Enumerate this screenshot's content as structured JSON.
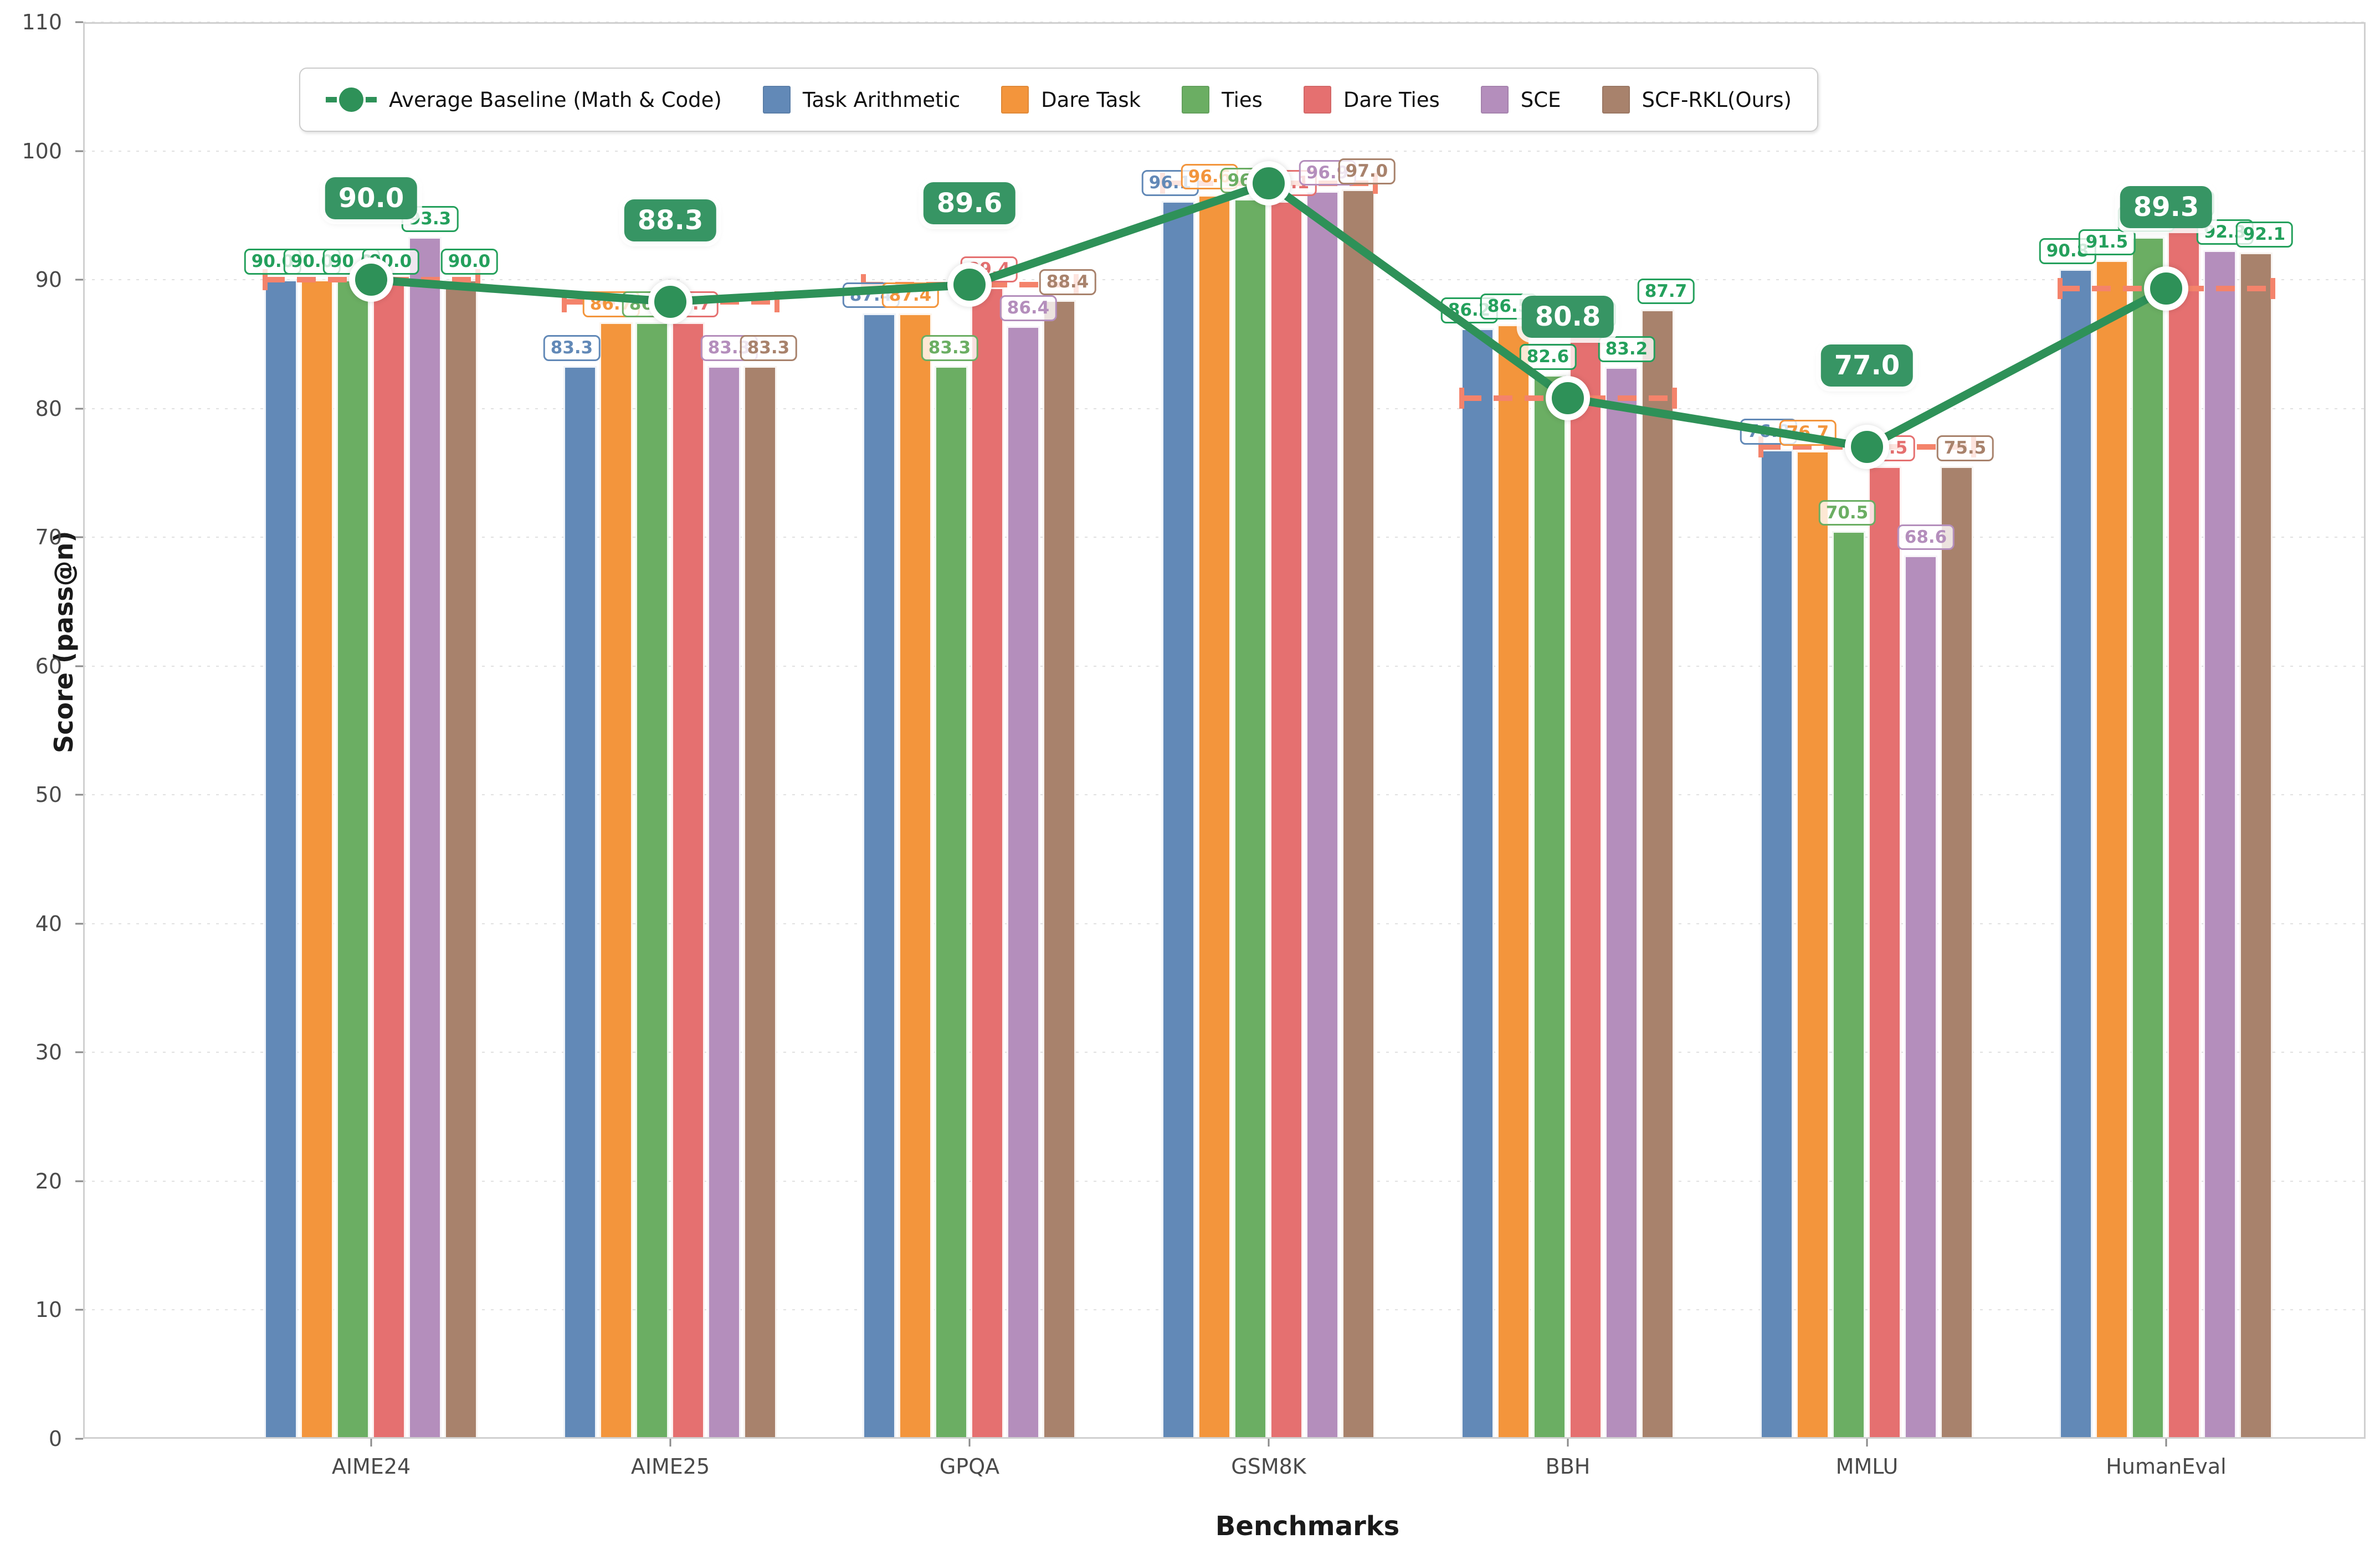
{
  "axes": {
    "ylabel": "Score (pass@n)",
    "xlabel": "Benchmarks",
    "yticks": [
      0,
      10,
      20,
      30,
      40,
      50,
      60,
      70,
      80,
      90,
      100,
      110
    ]
  },
  "legend": {
    "baseline_label": "Average Baseline (Math & Code)",
    "items": [
      {
        "label": "Task Arithmetic",
        "color": "#6289b7"
      },
      {
        "label": "Dare Task",
        "color": "#f3953c"
      },
      {
        "label": "Ties",
        "color": "#6bae63"
      },
      {
        "label": "Dare Ties",
        "color": "#e57070"
      },
      {
        "label": "SCE",
        "color": "#b48ebc"
      },
      {
        "label": "SCF-RKL(Ours)",
        "color": "#a8826c"
      }
    ]
  },
  "colors": {
    "baseline_line": "#2e9158",
    "baseline_badge": "#379564",
    "above_baseline_label": "#24a05c",
    "dashed_range": "#f4836b",
    "grid": "#c9c9c9"
  },
  "chart_data": {
    "type": "bar",
    "title": "",
    "xlabel": "Benchmarks",
    "ylabel": "Score (pass@n)",
    "ylim": [
      0,
      110
    ],
    "grid": true,
    "legend_position": "top",
    "categories": [
      "AIME24",
      "AIME25",
      "GPQA",
      "GSM8K",
      "BBH",
      "MMLU",
      "HumanEval"
    ],
    "series": [
      {
        "name": "Task Arithmetic",
        "color": "#6289b7",
        "values": [
          90.0,
          83.3,
          87.4,
          96.1,
          86.2,
          76.8,
          90.8
        ],
        "labels": [
          "90.0",
          "83.3",
          "87.4",
          "96.1",
          "86.2",
          "76.8",
          "90.8"
        ]
      },
      {
        "name": "Dare Task",
        "color": "#f3953c",
        "values": [
          90.0,
          86.7,
          87.4,
          96.6,
          86.5,
          76.7,
          91.5
        ],
        "labels": [
          "90.0",
          "86.7",
          "87.4",
          "96.6",
          "86.5",
          "76.7",
          "91.5"
        ]
      },
      {
        "name": "Ties",
        "color": "#6bae63",
        "values": [
          90.0,
          86.7,
          83.3,
          96.3,
          82.6,
          70.5,
          93.3
        ],
        "labels": [
          "90.0",
          "86.7",
          "83.3",
          "96.3",
          "82.6",
          "70.5",
          "93.3"
        ]
      },
      {
        "name": "Dare Ties",
        "color": "#e57070",
        "values": [
          90.0,
          86.7,
          89.4,
          96.1,
          85.9,
          75.5,
          94.5
        ],
        "labels": [
          "90.0",
          "86.7",
          "89.4",
          "96.1",
          "85.9",
          "75.5",
          "94.5"
        ]
      },
      {
        "name": "SCE",
        "color": "#b48ebc",
        "values": [
          93.3,
          83.3,
          86.4,
          96.9,
          83.2,
          68.6,
          92.3
        ],
        "labels": [
          "93.3",
          "83.3",
          "86.4",
          "96.9",
          "83.2",
          "68.6",
          "92.3"
        ]
      },
      {
        "name": "SCF-RKL(Ours)",
        "color": "#a8826c",
        "values": [
          90.0,
          83.3,
          88.4,
          97.0,
          87.7,
          75.5,
          92.1
        ],
        "labels": [
          "90.0",
          "83.3",
          "88.4",
          "97.0",
          "87.7",
          "75.5",
          "92.1"
        ]
      }
    ],
    "baseline": {
      "name": "Average Baseline (Math & Code)",
      "values": [
        90.0,
        88.3,
        89.6,
        97.5,
        80.8,
        77.0,
        89.3
      ],
      "labels": [
        "90.0",
        "88.3",
        "89.6",
        "97.5",
        "80.8",
        "77.0",
        "89.3"
      ]
    }
  }
}
